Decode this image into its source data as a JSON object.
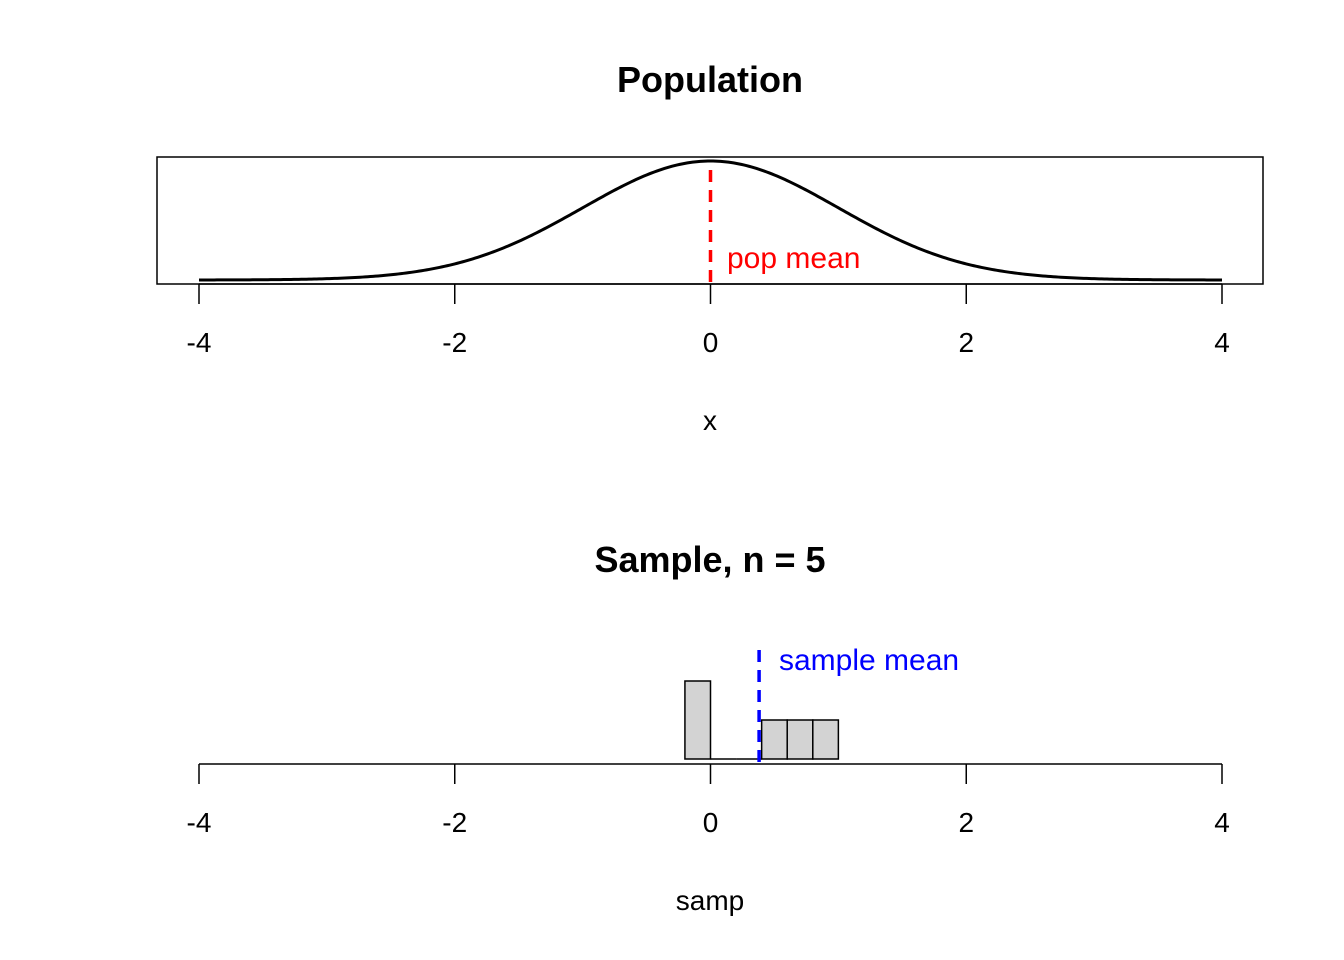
{
  "chart_data": [
    {
      "type": "line",
      "title": "Population",
      "xlabel": "x",
      "ylabel": "",
      "xlim": [
        -4,
        4
      ],
      "ylim": [
        0,
        0.4
      ],
      "xticks": [
        "-4",
        "-2",
        "0",
        "2",
        "4"
      ],
      "box": true,
      "series": [
        {
          "distribution": "standard normal density",
          "x_range": [
            -4,
            4
          ],
          "color": "#000000"
        }
      ],
      "reference_line": {
        "x": 0,
        "label": "pop mean",
        "color": "#ff0000",
        "style": "dashed"
      }
    },
    {
      "type": "bar",
      "title": "Sample, n = 5",
      "xlabel": "samp",
      "ylabel": "",
      "xlim": [
        -4,
        4
      ],
      "ylim": [
        0,
        2
      ],
      "xticks": [
        "-4",
        "-2",
        "0",
        "2",
        "4"
      ],
      "box": false,
      "bins": [
        {
          "x0": -0.2,
          "x1": 0.0,
          "count": 2
        },
        {
          "x0": 0.0,
          "x1": 0.2,
          "count": 0
        },
        {
          "x0": 0.2,
          "x1": 0.4,
          "count": 0
        },
        {
          "x0": 0.4,
          "x1": 0.6,
          "count": 1
        },
        {
          "x0": 0.6,
          "x1": 0.8,
          "count": 1
        },
        {
          "x0": 0.8,
          "x1": 1.0,
          "count": 1
        }
      ],
      "bar_color": "#d3d3d3",
      "reference_line": {
        "x": 0.38,
        "label": "sample mean",
        "color": "#0000ff",
        "style": "dashed"
      }
    }
  ]
}
